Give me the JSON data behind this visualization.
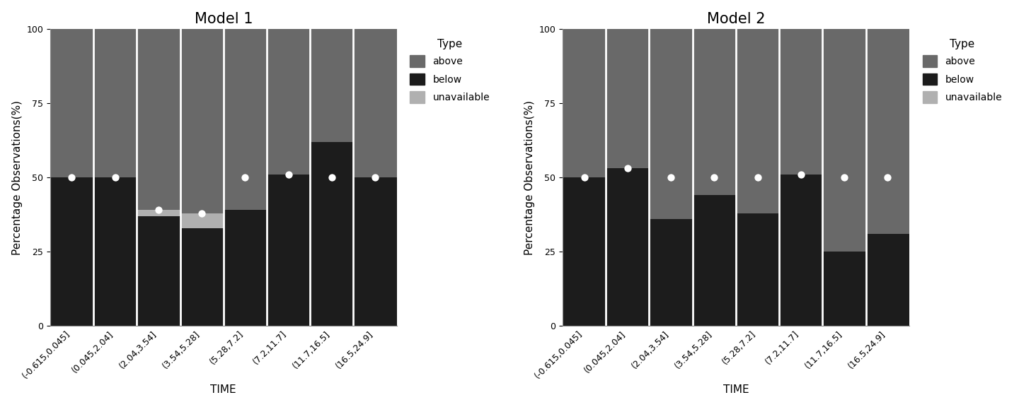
{
  "categories": [
    "(-0.615,0.045]",
    "(0.045,2.04]",
    "(2.04,3.54]",
    "(3.54,5.28]",
    "(5.28,7.2]",
    "(7.2,11.7]",
    "(11.7,16.5]",
    "(16.5,24.9]"
  ],
  "model1": {
    "title": "Model 1",
    "below": [
      50,
      50,
      37,
      33,
      39,
      51,
      62,
      50
    ],
    "unavailable": [
      0,
      0,
      2,
      5,
      0,
      0,
      0,
      0
    ],
    "above": [
      50,
      50,
      61,
      62,
      61,
      49,
      38,
      50
    ],
    "dot_y": [
      50,
      50,
      39,
      38,
      50,
      51,
      50,
      50
    ]
  },
  "model2": {
    "title": "Model 2",
    "below": [
      50,
      53,
      36,
      44,
      38,
      51,
      25,
      31
    ],
    "unavailable": [
      0,
      0,
      0,
      0,
      0,
      0,
      0,
      0
    ],
    "above": [
      50,
      47,
      64,
      56,
      62,
      49,
      75,
      69
    ],
    "dot_y": [
      50,
      53,
      50,
      50,
      50,
      51,
      50,
      50
    ]
  },
  "colors": {
    "above": "#696969",
    "below": "#1c1c1c",
    "unavailable": "#b0b0b0"
  },
  "bar_width": 1.0,
  "separator_color": "white",
  "separator_linewidth": 2.0,
  "ylabel": "Percentage Observations(%)",
  "xlabel": "TIME",
  "ylim": [
    0,
    100
  ],
  "yticks": [
    0,
    25,
    50,
    75,
    100
  ],
  "legend_title": "Type",
  "background_color": "#ffffff",
  "title_fontsize": 15,
  "axis_fontsize": 11,
  "tick_fontsize": 9,
  "dot_size": 55,
  "dot_color": "white"
}
